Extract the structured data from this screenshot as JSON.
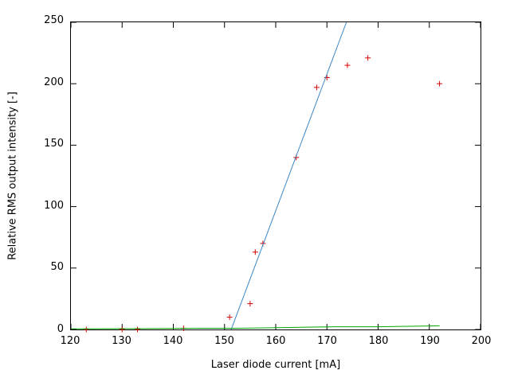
{
  "chart_data": {
    "type": "scatter",
    "title": "",
    "xlabel": "Laser diode current [mA]",
    "ylabel": "Relative RMS output intensity [-]",
    "xlim": [
      120,
      200
    ],
    "ylim": [
      0,
      250
    ],
    "xticks": [
      120,
      130,
      140,
      150,
      160,
      170,
      180,
      190,
      200
    ],
    "yticks": [
      0,
      50,
      100,
      150,
      200,
      250
    ],
    "grid": false,
    "legend": "none",
    "colors": {
      "points": "#d40000",
      "fit_line": "#3a86c8",
      "baseline": "#00a500",
      "axis": "#000000"
    },
    "series": [
      {
        "name": "measured-points",
        "kind": "scatter",
        "marker": "plus",
        "color": "#d40000",
        "points": [
          [
            123,
            0
          ],
          [
            130,
            0
          ],
          [
            133,
            0
          ],
          [
            142,
            1
          ],
          [
            151,
            10
          ],
          [
            155,
            21
          ],
          [
            156,
            63
          ],
          [
            157.5,
            70
          ],
          [
            164,
            140
          ],
          [
            168,
            197
          ],
          [
            170,
            205
          ],
          [
            174,
            215
          ],
          [
            178,
            221
          ],
          [
            192,
            200
          ]
        ]
      },
      {
        "name": "linear-fit-line",
        "kind": "line",
        "color": "#3a86c8",
        "points": [
          [
            151.3,
            0
          ],
          [
            173.8,
            250
          ]
        ]
      },
      {
        "name": "baseline-curve",
        "kind": "line",
        "color": "#00a500",
        "points": [
          [
            120,
            0.5
          ],
          [
            135,
            0.7
          ],
          [
            145,
            1
          ],
          [
            152,
            1
          ],
          [
            158,
            1.3
          ],
          [
            165,
            1.8
          ],
          [
            172,
            2.2
          ],
          [
            180,
            2.2
          ],
          [
            186,
            2.6
          ],
          [
            192,
            3
          ]
        ]
      }
    ]
  }
}
